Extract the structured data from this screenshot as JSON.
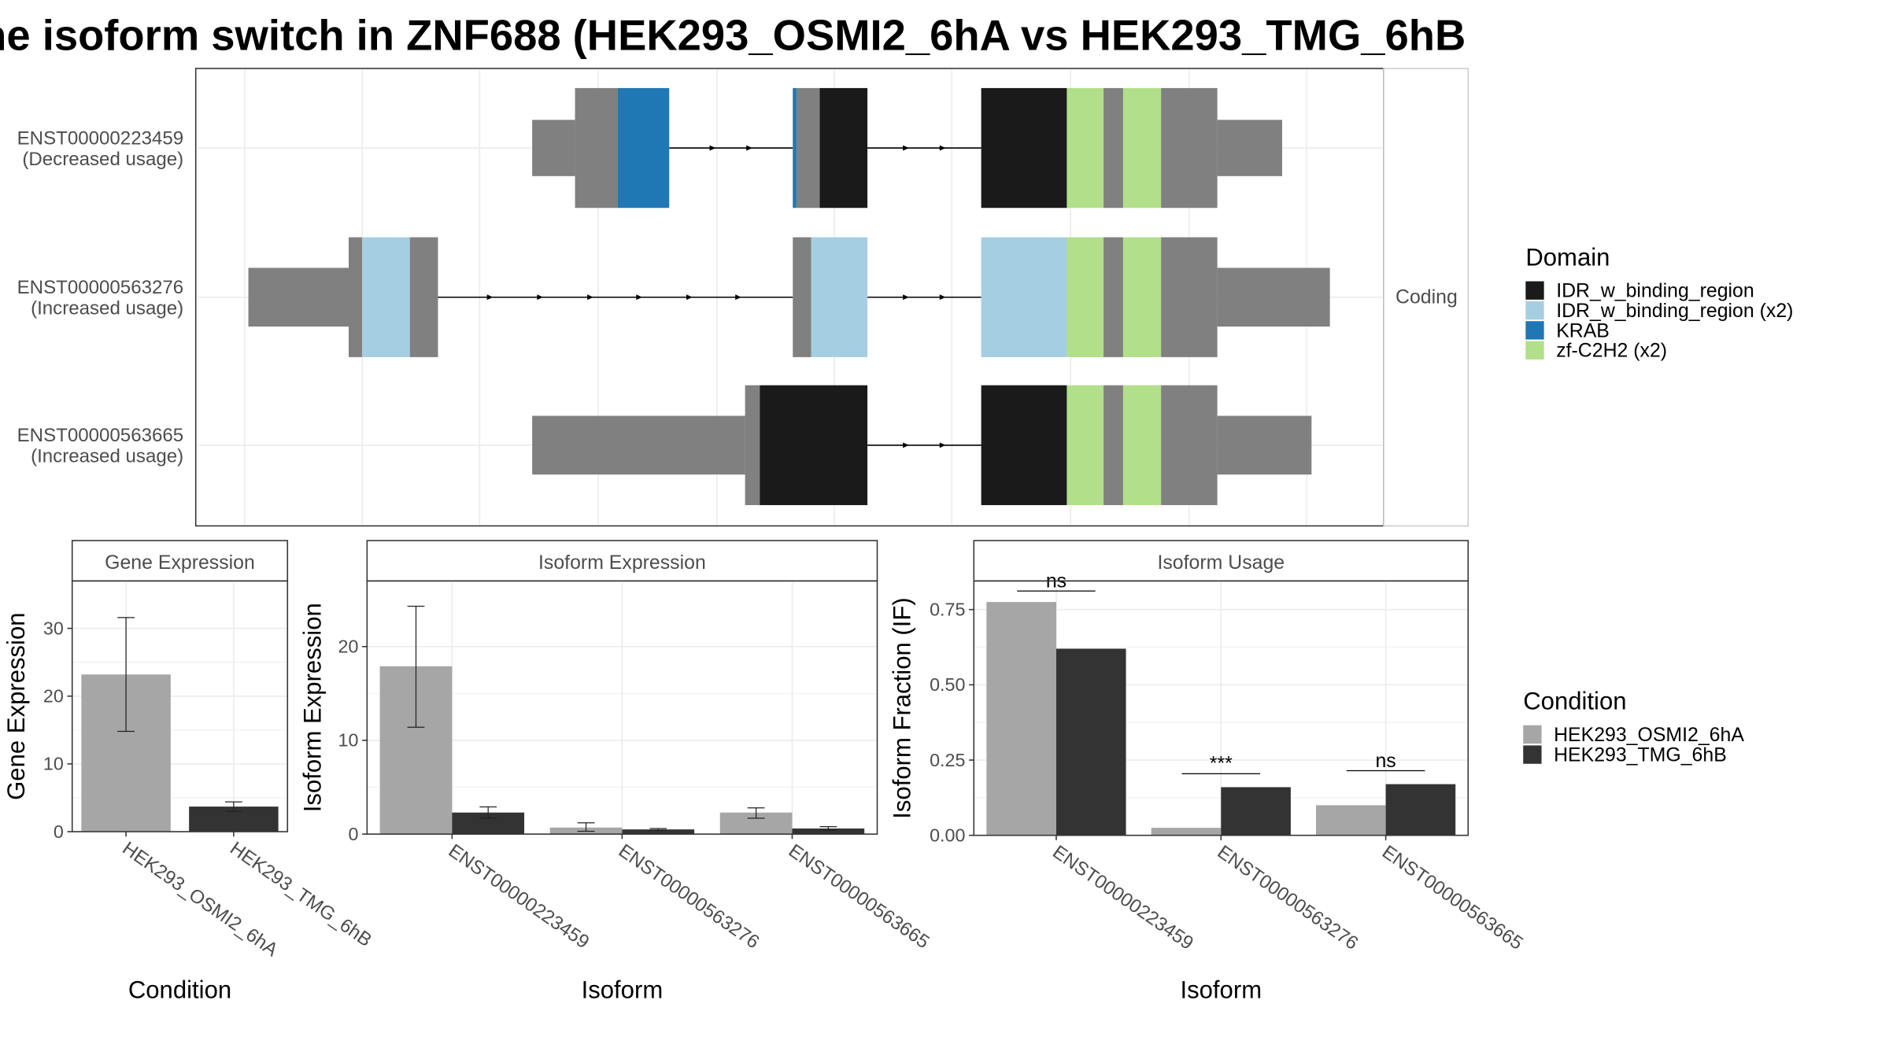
{
  "title": "he isoform switch in ZNF688 (HEK293_OSMI2_6hA vs HEK293_TMG_6hB",
  "colors": {
    "IDR_w_binding_region": "#1a1a1a",
    "IDR_w_binding_region (x2)": "#a6cee3",
    "KRAB": "#1f78b4",
    "zf-C2H2 (x2)": "#b2df8a",
    "utr": "#808080",
    "cond_a": "#a6a6a6",
    "cond_b": "#333333"
  },
  "chart_data": [
    {
      "type": "gene-structure",
      "strip": "Coding",
      "isoforms": [
        {
          "id": "ENST00000223459",
          "label": "(Decreased usage)"
        },
        {
          "id": "ENST00000563276",
          "label": "(Increased usage)"
        },
        {
          "id": "ENST00000563665",
          "label": "(Increased usage)"
        }
      ],
      "legend": {
        "title": "Domain",
        "entries": [
          "IDR_w_binding_region",
          "IDR_w_binding_region (x2)",
          "KRAB",
          "zf-C2H2 (x2)"
        ]
      }
    },
    {
      "type": "bar",
      "strip": "Gene Expression",
      "xlabel": "Condition",
      "ylabel": "Gene Expression",
      "ylim": [
        0,
        37
      ],
      "yticks": [
        0,
        10,
        20,
        30
      ],
      "categories": [
        "HEK293_OSMI2_6hA",
        "HEK293_TMG_6hB"
      ],
      "values": [
        23.2,
        3.7
      ],
      "errors": [
        [
          14.8,
          31.6
        ],
        [
          3.0,
          4.4
        ]
      ]
    },
    {
      "type": "bar",
      "strip": "Isoform Expression",
      "xlabel": "Isoform",
      "ylabel": "Isoform Expression",
      "ylim": [
        0,
        27
      ],
      "yticks": [
        0,
        10,
        20
      ],
      "categories": [
        "ENST00000223459",
        "ENST00000563276",
        "ENST00000563665"
      ],
      "series": [
        {
          "name": "HEK293_OSMI2_6hA",
          "values": [
            17.9,
            0.7,
            2.3
          ],
          "errors": [
            [
              11.4,
              24.3
            ],
            [
              0.3,
              1.2
            ],
            [
              1.7,
              2.8
            ]
          ]
        },
        {
          "name": "HEK293_TMG_6hB",
          "values": [
            2.3,
            0.5,
            0.6
          ],
          "errors": [
            [
              1.7,
              2.9
            ],
            [
              0.4,
              0.6
            ],
            [
              0.4,
              0.8
            ]
          ]
        }
      ]
    },
    {
      "type": "bar",
      "strip": "Isoform Usage",
      "xlabel": "Isoform",
      "ylabel": "Isoform Fraction (IF)",
      "ylim": [
        0,
        0.845
      ],
      "yticks": [
        "0.00",
        "0.25",
        "0.50",
        "0.75"
      ],
      "categories": [
        "ENST00000223459",
        "ENST00000563276",
        "ENST00000563665"
      ],
      "series": [
        {
          "name": "HEK293_OSMI2_6hA",
          "values": [
            0.775,
            0.025,
            0.1
          ]
        },
        {
          "name": "HEK293_TMG_6hB",
          "values": [
            0.62,
            0.16,
            0.17
          ]
        }
      ],
      "significance": [
        "ns",
        "***",
        "ns"
      ]
    }
  ],
  "condition_legend": {
    "title": "Condition",
    "entries": [
      "HEK293_OSMI2_6hA",
      "HEK293_TMG_6hB"
    ]
  }
}
